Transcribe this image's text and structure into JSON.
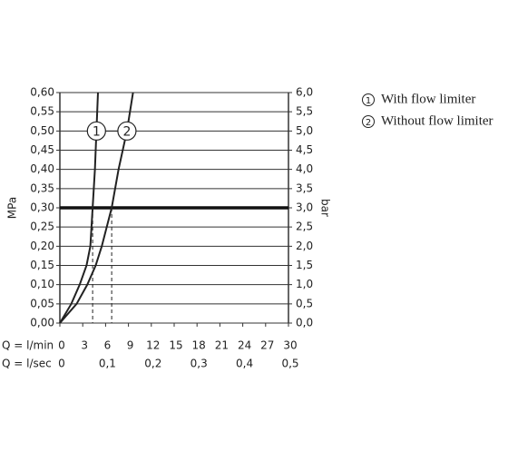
{
  "chart_data": {
    "type": "line",
    "ylabel": "MPa",
    "y2label": "bar",
    "xlabel": "Q = l/min",
    "x2label": "Q = l/sec",
    "xlim": [
      0,
      30
    ],
    "xticks": [
      0,
      3,
      6,
      9,
      12,
      15,
      18,
      21,
      24,
      27,
      30
    ],
    "x2lim": [
      0,
      0.5
    ],
    "x2ticks": [
      0,
      {
        "value": 0.1,
        "label": "0,1"
      },
      {
        "value": 0.2,
        "label": "0,2"
      },
      {
        "value": 0.3,
        "label": "0,3"
      },
      {
        "value": 0.4,
        "label": "0,4"
      },
      {
        "value": 0.5,
        "label": "0,5"
      }
    ],
    "ylim": [
      0,
      0.6
    ],
    "yticks": [
      {
        "value": 0,
        "label": "0,00"
      },
      {
        "value": 0.05,
        "label": "0,05"
      },
      {
        "value": 0.1,
        "label": "0,10"
      },
      {
        "value": 0.15,
        "label": "0,15"
      },
      {
        "value": 0.2,
        "label": "0,20"
      },
      {
        "value": 0.25,
        "label": "0,25"
      },
      {
        "value": 0.3,
        "label": "0,30"
      },
      {
        "value": 0.35,
        "label": "0,35"
      },
      {
        "value": 0.4,
        "label": "0,40"
      },
      {
        "value": 0.45,
        "label": "0,45"
      },
      {
        "value": 0.5,
        "label": "0,50"
      },
      {
        "value": 0.55,
        "label": "0,55"
      },
      {
        "value": 0.6,
        "label": "0,60"
      }
    ],
    "y2lim": [
      0,
      6
    ],
    "y2ticks": [
      {
        "value": 0,
        "label": "0,0"
      },
      {
        "value": 0.5,
        "label": "0,5"
      },
      {
        "value": 1,
        "label": "1,0"
      },
      {
        "value": 1.5,
        "label": "1,5"
      },
      {
        "value": 2,
        "label": "2,0"
      },
      {
        "value": 2.5,
        "label": "2,5"
      },
      {
        "value": 3,
        "label": "3,0"
      },
      {
        "value": 3.5,
        "label": "3,5"
      },
      {
        "value": 4,
        "label": "4,0"
      },
      {
        "value": 4.5,
        "label": "4,5"
      },
      {
        "value": 5,
        "label": "5,0"
      },
      {
        "value": 5.5,
        "label": "5,5"
      },
      {
        "value": 6,
        "label": "6,0"
      }
    ],
    "grid": true,
    "reference_y": 0.3,
    "drops": [
      {
        "x": 4.3,
        "y": 0.3
      },
      {
        "x": 6.8,
        "y": 0.3
      }
    ],
    "series": [
      {
        "name": "With flow limiter",
        "marker_label": "1",
        "color": "#222222",
        "x": [
          0,
          1.5,
          2.6,
          3.5,
          4.0,
          4.3,
          4.6,
          4.8,
          5.0
        ],
        "values": [
          0,
          0.05,
          0.1,
          0.15,
          0.2,
          0.3,
          0.4,
          0.5,
          0.6
        ]
      },
      {
        "name": "Without flow limiter",
        "marker_label": "2",
        "color": "#222222",
        "x": [
          0,
          2.2,
          3.6,
          4.7,
          5.5,
          6.8,
          7.7,
          8.8,
          9.6
        ],
        "values": [
          0,
          0.05,
          0.1,
          0.15,
          0.2,
          0.3,
          0.4,
          0.5,
          0.6
        ]
      }
    ]
  }
}
